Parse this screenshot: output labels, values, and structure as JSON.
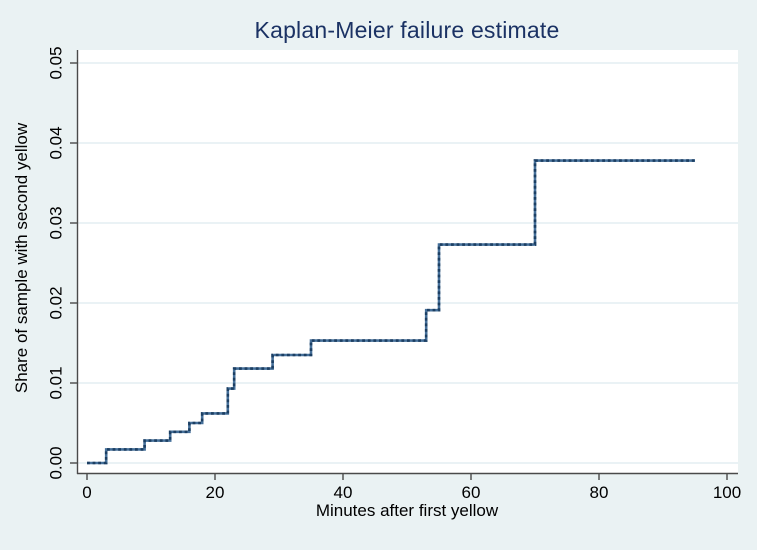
{
  "chart_data": {
    "type": "line",
    "line_style": "step",
    "title": "Kaplan-Meier failure estimate",
    "xlabel": "Minutes after first yellow",
    "ylabel": "Share of sample with second yellow",
    "xlim": [
      0,
      100
    ],
    "ylim": [
      0,
      0.05
    ],
    "x_ticks": [
      0,
      20,
      40,
      60,
      80,
      100
    ],
    "x_tick_labels": [
      "0",
      "20",
      "40",
      "60",
      "80",
      "100"
    ],
    "y_ticks": [
      0,
      0.01,
      0.02,
      0.03,
      0.04,
      0.05
    ],
    "y_tick_labels": [
      "0.00",
      "0.01",
      "0.02",
      "0.03",
      "0.04",
      "0.05"
    ],
    "grid": "horizontal",
    "legend": "none",
    "series": [
      {
        "name": "Kaplan-Meier failure estimate",
        "description": "Step function; each pair is [minutes, cumulative failure share from that time]",
        "steps": [
          [
            0,
            0.0
          ],
          [
            3,
            0.0017
          ],
          [
            9,
            0.0028
          ],
          [
            13,
            0.0039
          ],
          [
            16,
            0.005
          ],
          [
            18,
            0.0062
          ],
          [
            22,
            0.0093
          ],
          [
            23,
            0.0118
          ],
          [
            29,
            0.0135
          ],
          [
            35,
            0.0153
          ],
          [
            53,
            0.0191
          ],
          [
            55,
            0.0273
          ],
          [
            70,
            0.0378
          ],
          [
            95,
            0.0378
          ]
        ]
      }
    ]
  },
  "colors": {
    "background": "#eaf2f3",
    "plot_background": "#ffffff",
    "gridline": "#e3eef2",
    "axis": "#4a4a4a",
    "title": "#1b3264",
    "text": "#000000",
    "line_base": "#46709a",
    "line_dash": "#1c3f63"
  }
}
